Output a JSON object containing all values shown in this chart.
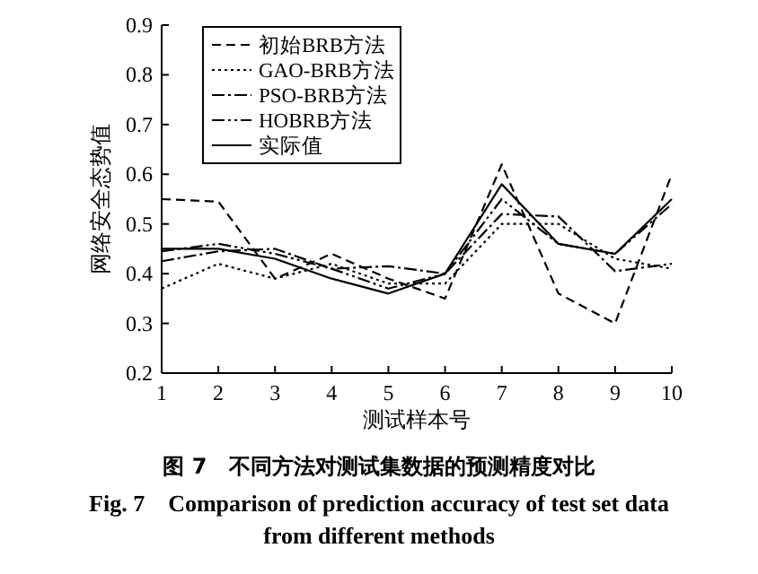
{
  "chart_data": {
    "type": "line",
    "title": "图 7　不同方法对测试集数据的预测精度对比",
    "subtitle": "Fig. 7　Comparison of prediction accuracy of test set data from different methods",
    "xlabel": "测试样本号",
    "ylabel": "网络安全态势值",
    "x": [
      1,
      2,
      3,
      4,
      5,
      6,
      7,
      8,
      9,
      10
    ],
    "series": [
      {
        "name": "初始BRB方法",
        "color": "#000000",
        "line_style": "dashed",
        "values": [
          0.55,
          0.545,
          0.39,
          0.44,
          0.39,
          0.35,
          0.62,
          0.36,
          0.3,
          0.6
        ]
      },
      {
        "name": "GAO-BRB方法",
        "color": "#000000",
        "line_style": "dotted",
        "values": [
          0.37,
          0.42,
          0.39,
          0.42,
          0.38,
          0.38,
          0.5,
          0.5,
          0.43,
          0.41
        ]
      },
      {
        "name": "PSO-BRB方法",
        "color": "#000000",
        "line_style": "dashdot",
        "values": [
          0.425,
          0.445,
          0.45,
          0.41,
          0.415,
          0.4,
          0.52,
          0.515,
          0.405,
          0.42
        ]
      },
      {
        "name": "HOBRB方法",
        "color": "#000000",
        "line_style": "dashdotdot",
        "values": [
          0.445,
          0.46,
          0.44,
          0.41,
          0.37,
          0.4,
          0.55,
          0.46,
          0.44,
          0.54
        ]
      },
      {
        "name": "实际值",
        "color": "#000000",
        "line_style": "solid",
        "values": [
          0.45,
          0.45,
          0.43,
          0.39,
          0.36,
          0.4,
          0.58,
          0.46,
          0.44,
          0.55
        ]
      }
    ],
    "xlim": [
      1,
      10
    ],
    "ylim": [
      0.2,
      0.9
    ],
    "xticks": [
      1,
      2,
      3,
      4,
      5,
      6,
      7,
      8,
      9,
      10
    ],
    "yticks": [
      0.2,
      0.3,
      0.4,
      0.5,
      0.6,
      0.7,
      0.8,
      0.9
    ],
    "legend": "top left",
    "grid": false
  }
}
